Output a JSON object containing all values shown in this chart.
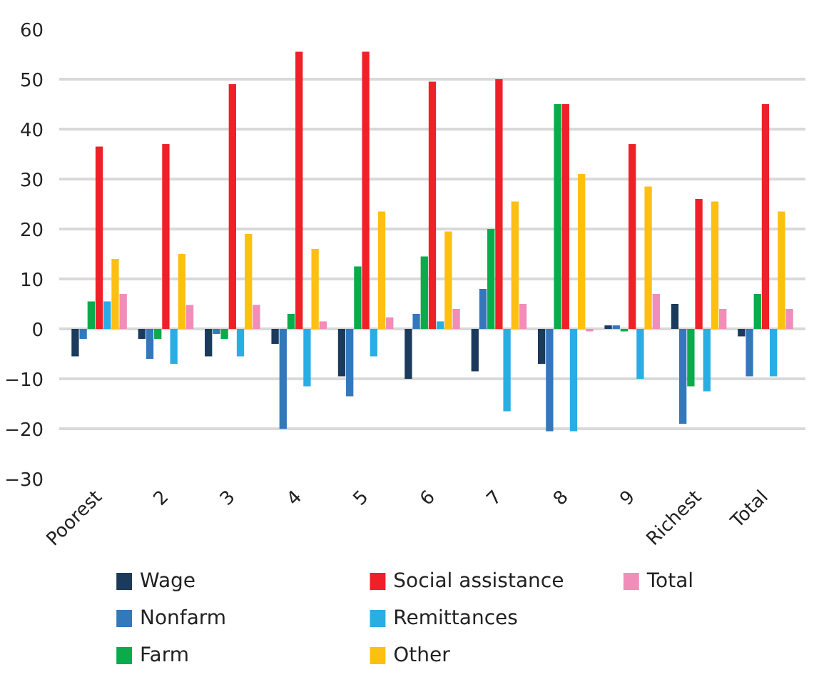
{
  "chart_data": {
    "type": "bar",
    "categories": [
      "Poorest",
      "2",
      "3",
      "4",
      "5",
      "6",
      "7",
      "8",
      "9",
      "Richest",
      "Total"
    ],
    "series": [
      {
        "name": "Wage",
        "color": "#1b3a5c",
        "values": [
          -5.5,
          -2,
          -5.5,
          -3,
          -9.5,
          -10,
          -8.5,
          -7,
          0.7,
          5,
          -1.5
        ]
      },
      {
        "name": "Nonfarm",
        "color": "#3478bc",
        "values": [
          -2,
          -6,
          -1,
          -20,
          -13.5,
          3,
          8,
          -20.5,
          0.7,
          -19,
          -9.5
        ]
      },
      {
        "name": "Farm",
        "color": "#0bab4b",
        "values": [
          5.5,
          -2,
          -2,
          3,
          12.5,
          14.5,
          20,
          45,
          -0.5,
          -11.5,
          7
        ]
      },
      {
        "name": "Social assistance",
        "color": "#ee2128",
        "values": [
          36.5,
          37,
          49,
          55.5,
          55.5,
          49.5,
          50,
          45,
          37,
          26,
          45
        ]
      },
      {
        "name": "Remittances",
        "color": "#29aee4",
        "values": [
          5.5,
          -7,
          -5.5,
          -11.5,
          -5.5,
          1.5,
          -16.5,
          -20.5,
          -10,
          -12.5,
          -9.5
        ]
      },
      {
        "name": "Other",
        "color": "#fdbf10",
        "values": [
          14,
          15,
          19,
          16,
          23.5,
          19.5,
          25.5,
          31,
          28.5,
          25.5,
          23.5
        ]
      },
      {
        "name": "Total",
        "color": "#f28cb9",
        "values": [
          7,
          4.8,
          4.8,
          1.5,
          2.3,
          4,
          5,
          -0.5,
          7,
          4,
          4
        ]
      }
    ],
    "ylim": [
      -30,
      60
    ],
    "yticks": [
      -30,
      -20,
      -10,
      0,
      10,
      20,
      30,
      40,
      50,
      60
    ],
    "grid": "y",
    "legend": "bottom"
  }
}
